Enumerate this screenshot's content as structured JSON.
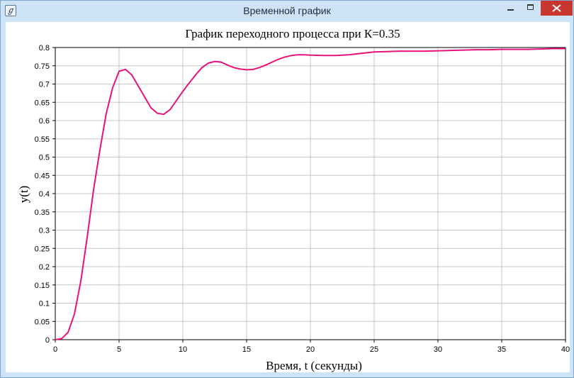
{
  "window": {
    "title": "Временной график",
    "icon": "graph-icon"
  },
  "colors": {
    "series": "#e8127a",
    "grid": "#c8c8c8",
    "frame": "#b6cde6"
  },
  "chart_data": {
    "type": "line",
    "title": "График переходного процесса при К=0.35",
    "xlabel": "Время, t (секунды)",
    "ylabel": "y(t)",
    "xlim": [
      0,
      40
    ],
    "ylim": [
      0,
      0.8
    ],
    "xticks": [
      "0",
      "5",
      "10",
      "15",
      "20",
      "25",
      "30",
      "35",
      "40"
    ],
    "yticks": [
      "0",
      "0.05",
      "0.1",
      "0.15",
      "0.2",
      "0.25",
      "0.3",
      "0.35",
      "0.4",
      "0.45",
      "0.5",
      "0.55",
      "0.6",
      "0.65",
      "0.7",
      "0.75",
      "0.8"
    ],
    "grid": true,
    "series": [
      {
        "color": "#e8127a",
        "x": [
          0,
          0.5,
          1,
          1.5,
          2,
          2.5,
          3,
          3.5,
          4,
          4.5,
          5,
          5.5,
          6,
          6.5,
          7,
          7.5,
          8,
          8.5,
          9,
          9.5,
          10,
          10.5,
          11,
          11.5,
          12,
          12.5,
          13,
          13.5,
          14,
          14.5,
          15,
          15.5,
          16,
          16.5,
          17,
          17.5,
          18,
          18.5,
          19,
          19.5,
          20,
          21,
          22,
          23,
          24,
          25,
          26,
          27,
          28,
          29,
          30,
          31,
          32,
          33,
          34,
          35,
          36,
          37,
          38,
          39,
          40
        ],
        "y": [
          0,
          0.003,
          0.02,
          0.07,
          0.16,
          0.28,
          0.41,
          0.52,
          0.62,
          0.69,
          0.735,
          0.74,
          0.725,
          0.695,
          0.665,
          0.635,
          0.62,
          0.617,
          0.63,
          0.655,
          0.68,
          0.703,
          0.725,
          0.745,
          0.757,
          0.762,
          0.76,
          0.752,
          0.745,
          0.741,
          0.739,
          0.74,
          0.745,
          0.752,
          0.76,
          0.768,
          0.774,
          0.778,
          0.78,
          0.78,
          0.779,
          0.778,
          0.778,
          0.78,
          0.784,
          0.788,
          0.789,
          0.79,
          0.79,
          0.79,
          0.791,
          0.792,
          0.793,
          0.794,
          0.794,
          0.795,
          0.795,
          0.795,
          0.796,
          0.797,
          0.797
        ]
      }
    ]
  }
}
